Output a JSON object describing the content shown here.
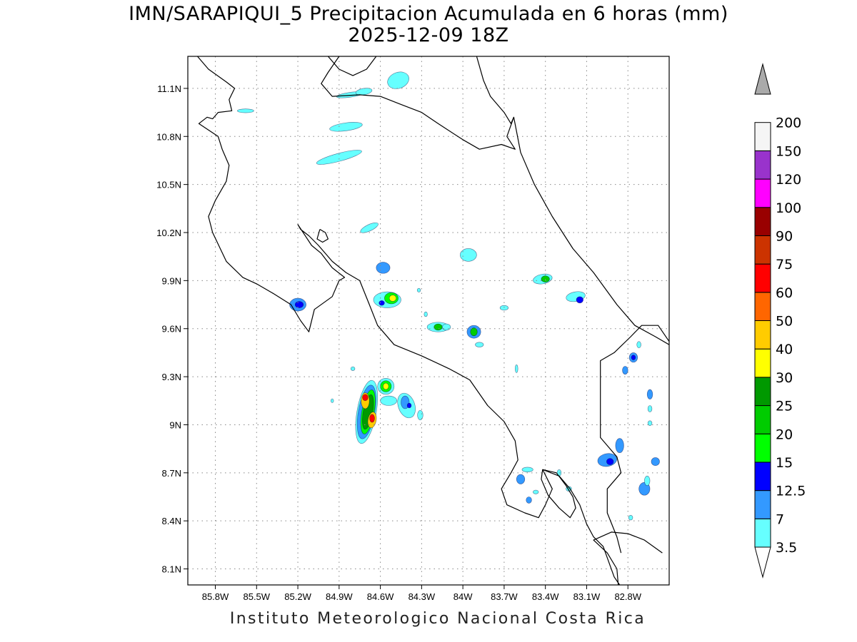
{
  "title": {
    "line1": "IMN/SARAPIQUI_5 Precipitacion Acumulada en 6 horas (mm)",
    "line2": "2025-12-09 18Z"
  },
  "credit": "Instituto Meteorologico Nacional Costa Rica",
  "axes": {
    "lon_range": [
      -86.0,
      -82.5
    ],
    "lat_range": [
      8.0,
      11.3
    ],
    "x_ticks": [
      {
        "value": -85.8,
        "label": "85.8W"
      },
      {
        "value": -85.5,
        "label": "85.5W"
      },
      {
        "value": -85.2,
        "label": "85.2W"
      },
      {
        "value": -84.9,
        "label": "84.9W"
      },
      {
        "value": -84.6,
        "label": "84.6W"
      },
      {
        "value": -84.3,
        "label": "84.3W"
      },
      {
        "value": -84.0,
        "label": "84W"
      },
      {
        "value": -83.7,
        "label": "83.7W"
      },
      {
        "value": -83.4,
        "label": "83.4W"
      },
      {
        "value": -83.1,
        "label": "83.1W"
      },
      {
        "value": -82.8,
        "label": "82.8W"
      }
    ],
    "y_ticks": [
      {
        "value": 11.1,
        "label": "11.1N"
      },
      {
        "value": 10.8,
        "label": "10.8N"
      },
      {
        "value": 10.5,
        "label": "10.5N"
      },
      {
        "value": 10.2,
        "label": "10.2N"
      },
      {
        "value": 9.9,
        "label": "9.9N"
      },
      {
        "value": 9.6,
        "label": "9.6N"
      },
      {
        "value": 9.3,
        "label": "9.3N"
      },
      {
        "value": 9.0,
        "label": "9N"
      },
      {
        "value": 8.7,
        "label": "8.7N"
      },
      {
        "value": 8.4,
        "label": "8.4N"
      },
      {
        "value": 8.1,
        "label": "8.1N"
      }
    ],
    "grid": "dotted"
  },
  "colorbar": {
    "levels": [
      {
        "label": "3.5",
        "color": "#66ffff"
      },
      {
        "label": "7",
        "color": "#3399ff"
      },
      {
        "label": "12.5",
        "color": "#0000ff"
      },
      {
        "label": "15",
        "color": "#00ff00"
      },
      {
        "label": "20",
        "color": "#00cc00"
      },
      {
        "label": "25",
        "color": "#009900"
      },
      {
        "label": "30",
        "color": "#ffff00"
      },
      {
        "label": "40",
        "color": "#ffcc00"
      },
      {
        "label": "50",
        "color": "#ff6600"
      },
      {
        "label": "60",
        "color": "#ff0000"
      },
      {
        "label": "75",
        "color": "#cc3300"
      },
      {
        "label": "90",
        "color": "#990000"
      },
      {
        "label": "100",
        "color": "#ff00ff"
      },
      {
        "label": "120",
        "color": "#9933cc"
      },
      {
        "label": "150",
        "color": "#f5f5f5"
      },
      {
        "label": "200",
        "color": "#aaaaaa"
      }
    ],
    "below_color": "#ffffff"
  },
  "coastline": [
    [
      [
        -85.93,
        11.3
      ],
      [
        -85.85,
        11.22
      ],
      [
        -85.72,
        11.14
      ],
      [
        -85.66,
        11.1
      ],
      [
        -85.7,
        11.03
      ],
      [
        -85.68,
        10.96
      ],
      [
        -85.78,
        10.95
      ],
      [
        -85.82,
        10.91
      ],
      [
        -85.86,
        10.92
      ],
      [
        -85.92,
        10.88
      ],
      [
        -85.78,
        10.8
      ],
      [
        -85.75,
        10.72
      ],
      [
        -85.7,
        10.62
      ],
      [
        -85.72,
        10.52
      ],
      [
        -85.8,
        10.4
      ],
      [
        -85.85,
        10.3
      ],
      [
        -85.82,
        10.2
      ],
      [
        -85.72,
        10.02
      ],
      [
        -85.6,
        9.92
      ],
      [
        -85.5,
        9.88
      ],
      [
        -85.38,
        9.82
      ],
      [
        -85.25,
        9.75
      ],
      [
        -85.18,
        9.65
      ],
      [
        -85.12,
        9.58
      ],
      [
        -85.08,
        9.72
      ],
      [
        -84.95,
        9.8
      ],
      [
        -84.9,
        9.9
      ],
      [
        -84.86,
        9.92
      ],
      [
        -84.95,
        9.98
      ],
      [
        -85.03,
        10.07
      ],
      [
        -85.1,
        10.12
      ],
      [
        -85.2,
        10.25
      ],
      [
        -85.18,
        10.22
      ],
      [
        -85.12,
        10.18
      ],
      [
        -85.05,
        10.12
      ],
      [
        -84.95,
        10.02
      ],
      [
        -84.85,
        9.95
      ],
      [
        -84.75,
        9.9
      ],
      [
        -84.68,
        9.75
      ],
      [
        -84.62,
        9.62
      ],
      [
        -84.5,
        9.5
      ],
      [
        -84.3,
        9.43
      ],
      [
        -84.1,
        9.35
      ],
      [
        -83.95,
        9.28
      ],
      [
        -83.82,
        9.12
      ],
      [
        -83.7,
        9.02
      ],
      [
        -83.62,
        8.9
      ],
      [
        -83.6,
        8.78
      ],
      [
        -83.65,
        8.7
      ],
      [
        -83.72,
        8.6
      ],
      [
        -83.68,
        8.5
      ],
      [
        -83.55,
        8.45
      ],
      [
        -83.45,
        8.42
      ],
      [
        -83.4,
        8.5
      ],
      [
        -83.35,
        8.6
      ],
      [
        -83.42,
        8.72
      ],
      [
        -83.3,
        8.68
      ],
      [
        -83.22,
        8.6
      ],
      [
        -83.15,
        8.5
      ],
      [
        -83.1,
        8.38
      ],
      [
        -83.05,
        8.3
      ],
      [
        -82.98,
        8.24
      ],
      [
        -82.9,
        8.05
      ],
      [
        -82.86,
        8.0
      ]
    ],
    [
      [
        -83.42,
        8.72
      ],
      [
        -83.32,
        8.7
      ],
      [
        -83.25,
        8.62
      ],
      [
        -83.2,
        8.55
      ],
      [
        -83.18,
        8.48
      ],
      [
        -83.22,
        8.42
      ],
      [
        -83.3,
        8.48
      ],
      [
        -83.38,
        8.56
      ],
      [
        -83.43,
        8.66
      ],
      [
        -83.42,
        8.72
      ]
    ],
    [
      [
        -82.87,
        8.0
      ],
      [
        -82.88,
        8.1
      ],
      [
        -82.95,
        8.2
      ],
      [
        -83.05,
        8.28
      ],
      [
        -82.92,
        8.33
      ],
      [
        -82.8,
        8.32
      ],
      [
        -82.68,
        8.28
      ],
      [
        -82.55,
        8.2
      ]
    ],
    [
      [
        -85.04,
        10.22
      ],
      [
        -85.0,
        10.2
      ],
      [
        -84.98,
        10.16
      ],
      [
        -85.02,
        10.14
      ],
      [
        -85.06,
        10.16
      ],
      [
        -85.04,
        10.22
      ]
    ],
    [
      [
        -84.9,
        11.3
      ],
      [
        -84.98,
        11.2
      ],
      [
        -85.03,
        11.13
      ],
      [
        -84.95,
        11.05
      ],
      [
        -84.75,
        11.06
      ],
      [
        -84.6,
        11.05
      ],
      [
        -84.45,
        11.0
      ],
      [
        -84.3,
        10.95
      ],
      [
        -84.18,
        10.88
      ],
      [
        -84.0,
        10.78
      ],
      [
        -83.88,
        10.72
      ],
      [
        -83.72,
        10.75
      ],
      [
        -83.62,
        10.72
      ],
      [
        -83.68,
        10.8
      ],
      [
        -83.63,
        10.92
      ],
      [
        -83.65,
        10.88
      ],
      [
        -83.7,
        10.95
      ],
      [
        -83.8,
        11.05
      ],
      [
        -83.85,
        11.15
      ],
      [
        -83.9,
        11.3
      ]
    ],
    [
      [
        -83.63,
        10.92
      ],
      [
        -83.58,
        10.7
      ],
      [
        -83.48,
        10.5
      ],
      [
        -83.35,
        10.3
      ],
      [
        -83.2,
        10.1
      ],
      [
        -83.05,
        9.95
      ],
      [
        -82.88,
        9.75
      ],
      [
        -82.75,
        9.62
      ],
      [
        -82.6,
        9.55
      ],
      [
        -82.5,
        9.5
      ]
    ],
    [
      [
        -82.5,
        9.52
      ],
      [
        -82.58,
        9.62
      ],
      [
        -82.7,
        9.62
      ],
      [
        -82.78,
        9.55
      ],
      [
        -82.9,
        9.45
      ],
      [
        -83.0,
        9.4
      ],
      [
        -83.0,
        9.0
      ],
      [
        -83.0,
        8.92
      ],
      [
        -82.88,
        8.8
      ],
      [
        -82.85,
        8.7
      ],
      [
        -82.95,
        8.6
      ],
      [
        -82.95,
        8.45
      ],
      [
        -82.88,
        8.3
      ],
      [
        -82.85,
        8.2
      ]
    ],
    [
      [
        -84.98,
        11.3
      ],
      [
        -84.9,
        11.22
      ],
      [
        -84.8,
        11.18
      ],
      [
        -84.7,
        11.22
      ],
      [
        -84.63,
        11.3
      ]
    ]
  ],
  "precip_cells": [
    {
      "lon": -85.58,
      "lat": 10.96,
      "rx": 0.06,
      "ry": 0.012,
      "rot": 0,
      "mm": 4
    },
    {
      "lon": -84.82,
      "lat": 11.06,
      "rx": 0.1,
      "ry": 0.015,
      "rot": -8,
      "mm": 4
    },
    {
      "lon": -84.72,
      "lat": 11.08,
      "rx": 0.06,
      "ry": 0.02,
      "rot": -10,
      "mm": 4
    },
    {
      "lon": -84.47,
      "lat": 11.15,
      "rx": 0.08,
      "ry": 0.05,
      "rot": -20,
      "mm": 4
    },
    {
      "lon": -84.85,
      "lat": 10.86,
      "rx": 0.12,
      "ry": 0.025,
      "rot": -8,
      "mm": 4
    },
    {
      "lon": -84.9,
      "lat": 10.67,
      "rx": 0.17,
      "ry": 0.025,
      "rot": -15,
      "mm": 4
    },
    {
      "lon": -84.68,
      "lat": 10.23,
      "rx": 0.07,
      "ry": 0.02,
      "rot": -25,
      "mm": 4
    },
    {
      "lon": -85.2,
      "lat": 9.75,
      "rx": 0.06,
      "ry": 0.04,
      "rot": 0,
      "mm": 8
    },
    {
      "lon": -85.19,
      "lat": 9.75,
      "rx": 0.03,
      "ry": 0.02,
      "rot": 0,
      "mm": 13
    },
    {
      "lon": -84.58,
      "lat": 9.98,
      "rx": 0.05,
      "ry": 0.035,
      "rot": 0,
      "mm": 7
    },
    {
      "lon": -84.55,
      "lat": 9.78,
      "rx": 0.1,
      "ry": 0.05,
      "rot": 0,
      "mm": 5
    },
    {
      "lon": -84.52,
      "lat": 9.79,
      "rx": 0.05,
      "ry": 0.035,
      "rot": 0,
      "mm": 16
    },
    {
      "lon": -84.51,
      "lat": 9.79,
      "rx": 0.025,
      "ry": 0.02,
      "rot": 0,
      "mm": 32
    },
    {
      "lon": -84.59,
      "lat": 9.76,
      "rx": 0.02,
      "ry": 0.015,
      "rot": 0,
      "mm": 13
    },
    {
      "lon": -84.18,
      "lat": 9.61,
      "rx": 0.08,
      "ry": 0.03,
      "rot": 0,
      "mm": 6
    },
    {
      "lon": -84.18,
      "lat": 9.61,
      "rx": 0.03,
      "ry": 0.02,
      "rot": 0,
      "mm": 22
    },
    {
      "lon": -83.96,
      "lat": 10.06,
      "rx": 0.06,
      "ry": 0.04,
      "rot": 0,
      "mm": 5
    },
    {
      "lon": -83.92,
      "lat": 9.58,
      "rx": 0.05,
      "ry": 0.04,
      "rot": 0,
      "mm": 8
    },
    {
      "lon": -83.92,
      "lat": 9.58,
      "rx": 0.025,
      "ry": 0.025,
      "rot": 0,
      "mm": 22
    },
    {
      "lon": -83.88,
      "lat": 9.5,
      "rx": 0.03,
      "ry": 0.015,
      "rot": 0,
      "mm": 4
    },
    {
      "lon": -83.7,
      "lat": 9.73,
      "rx": 0.03,
      "ry": 0.015,
      "rot": 0,
      "mm": 4
    },
    {
      "lon": -83.42,
      "lat": 9.91,
      "rx": 0.07,
      "ry": 0.03,
      "rot": -10,
      "mm": 6
    },
    {
      "lon": -83.4,
      "lat": 9.91,
      "rx": 0.03,
      "ry": 0.02,
      "rot": 0,
      "mm": 22
    },
    {
      "lon": -83.18,
      "lat": 9.8,
      "rx": 0.07,
      "ry": 0.03,
      "rot": -10,
      "mm": 6
    },
    {
      "lon": -83.15,
      "lat": 9.78,
      "rx": 0.025,
      "ry": 0.02,
      "rot": 0,
      "mm": 14
    },
    {
      "lon": -84.7,
      "lat": 9.08,
      "rx": 0.07,
      "ry": 0.2,
      "rot": 10,
      "mm": 4
    },
    {
      "lon": -84.7,
      "lat": 9.08,
      "rx": 0.06,
      "ry": 0.17,
      "rot": 10,
      "mm": 8
    },
    {
      "lon": -84.69,
      "lat": 9.08,
      "rx": 0.045,
      "ry": 0.14,
      "rot": 10,
      "mm": 16
    },
    {
      "lon": -84.69,
      "lat": 9.08,
      "rx": 0.035,
      "ry": 0.11,
      "rot": 10,
      "mm": 26
    },
    {
      "lon": -84.71,
      "lat": 9.15,
      "rx": 0.03,
      "ry": 0.05,
      "rot": 0,
      "mm": 45
    },
    {
      "lon": -84.71,
      "lat": 9.17,
      "rx": 0.02,
      "ry": 0.02,
      "rot": 0,
      "mm": 65
    },
    {
      "lon": -84.66,
      "lat": 9.03,
      "rx": 0.03,
      "ry": 0.05,
      "rot": 10,
      "mm": 45
    },
    {
      "lon": -84.66,
      "lat": 9.04,
      "rx": 0.018,
      "ry": 0.025,
      "rot": 0,
      "mm": 65
    },
    {
      "lon": -84.56,
      "lat": 9.24,
      "rx": 0.06,
      "ry": 0.05,
      "rot": 0,
      "mm": 6
    },
    {
      "lon": -84.56,
      "lat": 9.24,
      "rx": 0.04,
      "ry": 0.035,
      "rot": 0,
      "mm": 15
    },
    {
      "lon": -84.56,
      "lat": 9.24,
      "rx": 0.02,
      "ry": 0.02,
      "rot": 0,
      "mm": 32
    },
    {
      "lon": -84.54,
      "lat": 9.15,
      "rx": 0.06,
      "ry": 0.03,
      "rot": 0,
      "mm": 4
    },
    {
      "lon": -84.41,
      "lat": 9.12,
      "rx": 0.06,
      "ry": 0.08,
      "rot": -20,
      "mm": 5
    },
    {
      "lon": -84.42,
      "lat": 9.14,
      "rx": 0.03,
      "ry": 0.04,
      "rot": 0,
      "mm": 8
    },
    {
      "lon": -84.39,
      "lat": 9.12,
      "rx": 0.015,
      "ry": 0.015,
      "rot": 0,
      "mm": 13
    },
    {
      "lon": -84.31,
      "lat": 9.06,
      "rx": 0.02,
      "ry": 0.03,
      "rot": 0,
      "mm": 5
    },
    {
      "lon": -83.58,
      "lat": 8.66,
      "rx": 0.03,
      "ry": 0.03,
      "rot": 0,
      "mm": 8
    },
    {
      "lon": -83.53,
      "lat": 8.72,
      "rx": 0.04,
      "ry": 0.015,
      "rot": 0,
      "mm": 4
    },
    {
      "lon": -83.52,
      "lat": 8.53,
      "rx": 0.02,
      "ry": 0.02,
      "rot": 0,
      "mm": 7
    },
    {
      "lon": -82.95,
      "lat": 8.78,
      "rx": 0.07,
      "ry": 0.04,
      "rot": -10,
      "mm": 7
    },
    {
      "lon": -82.93,
      "lat": 8.77,
      "rx": 0.025,
      "ry": 0.02,
      "rot": 0,
      "mm": 13
    },
    {
      "lon": -82.86,
      "lat": 8.87,
      "rx": 0.03,
      "ry": 0.045,
      "rot": 0,
      "mm": 7
    },
    {
      "lon": -82.76,
      "lat": 9.42,
      "rx": 0.03,
      "ry": 0.03,
      "rot": 0,
      "mm": 8
    },
    {
      "lon": -82.76,
      "lat": 9.42,
      "rx": 0.015,
      "ry": 0.015,
      "rot": 0,
      "mm": 13
    },
    {
      "lon": -82.82,
      "lat": 9.34,
      "rx": 0.02,
      "ry": 0.025,
      "rot": 0,
      "mm": 7
    },
    {
      "lon": -82.64,
      "lat": 9.19,
      "rx": 0.02,
      "ry": 0.03,
      "rot": 0,
      "mm": 7
    },
    {
      "lon": -82.64,
      "lat": 9.1,
      "rx": 0.015,
      "ry": 0.02,
      "rot": 0,
      "mm": 4
    },
    {
      "lon": -82.64,
      "lat": 9.01,
      "rx": 0.015,
      "ry": 0.015,
      "rot": 0,
      "mm": 4
    },
    {
      "lon": -82.6,
      "lat": 8.77,
      "rx": 0.03,
      "ry": 0.025,
      "rot": 0,
      "mm": 7
    },
    {
      "lon": -82.68,
      "lat": 8.6,
      "rx": 0.04,
      "ry": 0.04,
      "rot": 0,
      "mm": 7
    },
    {
      "lon": -82.66,
      "lat": 8.65,
      "rx": 0.02,
      "ry": 0.03,
      "rot": 0,
      "mm": 4
    },
    {
      "lon": -82.78,
      "lat": 8.42,
      "rx": 0.015,
      "ry": 0.015,
      "rot": 0,
      "mm": 4
    },
    {
      "lon": -84.8,
      "lat": 9.35,
      "rx": 0.015,
      "ry": 0.012,
      "rot": 0,
      "mm": 4
    },
    {
      "lon": -84.95,
      "lat": 9.15,
      "rx": 0.01,
      "ry": 0.012,
      "rot": 0,
      "mm": 4
    },
    {
      "lon": -84.27,
      "lat": 9.69,
      "rx": 0.012,
      "ry": 0.015,
      "rot": 0,
      "mm": 4
    },
    {
      "lon": -84.12,
      "lat": 9.61,
      "rx": 0.03,
      "ry": 0.02,
      "rot": 0,
      "mm": 5
    },
    {
      "lon": -84.32,
      "lat": 9.84,
      "rx": 0.012,
      "ry": 0.012,
      "rot": 0,
      "mm": 4
    },
    {
      "lon": -83.61,
      "lat": 9.35,
      "rx": 0.01,
      "ry": 0.025,
      "rot": 0,
      "mm": 4
    },
    {
      "lon": -83.47,
      "lat": 8.58,
      "rx": 0.02,
      "ry": 0.012,
      "rot": 0,
      "mm": 4
    },
    {
      "lon": -83.3,
      "lat": 8.7,
      "rx": 0.015,
      "ry": 0.02,
      "rot": 0,
      "mm": 4
    },
    {
      "lon": -83.23,
      "lat": 8.6,
      "rx": 0.02,
      "ry": 0.015,
      "rot": 0,
      "mm": 4
    },
    {
      "lon": -82.72,
      "lat": 9.5,
      "rx": 0.015,
      "ry": 0.02,
      "rot": 0,
      "mm": 4
    }
  ]
}
